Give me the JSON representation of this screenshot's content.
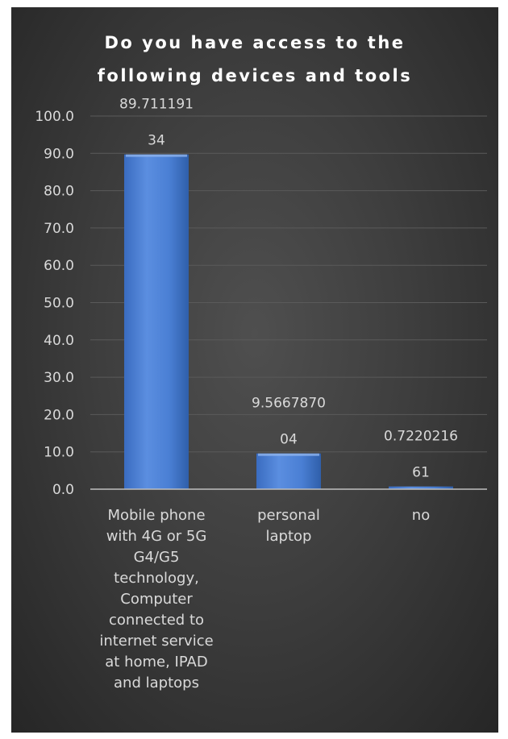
{
  "chart_data": {
    "type": "bar",
    "title_lines": [
      "Do you have access to the",
      "following devices and tools"
    ],
    "categories": [
      "Mobile phone with 4G or 5G G4/G5 technology, Computer connected to internet service at home, IPAD and laptops",
      "personal laptop",
      "no"
    ],
    "category_label_lines": [
      [
        "Mobile phone",
        "with 4G or 5G",
        "G4/G5",
        "technology,",
        "Computer",
        "connected to",
        "internet service",
        "at home, IPAD",
        "and laptops"
      ],
      [
        "personal",
        "laptop"
      ],
      [
        "no"
      ]
    ],
    "values": [
      89.71119134,
      9.566787004,
      0.722021661
    ],
    "data_labels": [
      [
        "89.711191",
        "34"
      ],
      [
        "9.5667870",
        "04"
      ],
      [
        "0.7220216",
        "61"
      ]
    ],
    "ylim": [
      0,
      100
    ],
    "yticks": [
      0,
      10,
      20,
      30,
      40,
      50,
      60,
      70,
      80,
      90,
      100
    ],
    "ytick_labels": [
      "0.0",
      "10.0",
      "20.0",
      "30.0",
      "40.0",
      "50.0",
      "60.0",
      "70.0",
      "80.0",
      "90.0",
      "100.0"
    ],
    "xlabel": "",
    "ylabel": "",
    "grid": true,
    "legend": "none",
    "colors": {
      "bar_top": "#6e9ae0",
      "bar_mid": "#4a7fd4",
      "bar_bottom": "#2f5faa",
      "grid": "#5a5a5a",
      "axis": "#bfbfbf",
      "text": "#d9d9d9",
      "title": "#ffffff",
      "background": "#404040"
    }
  }
}
